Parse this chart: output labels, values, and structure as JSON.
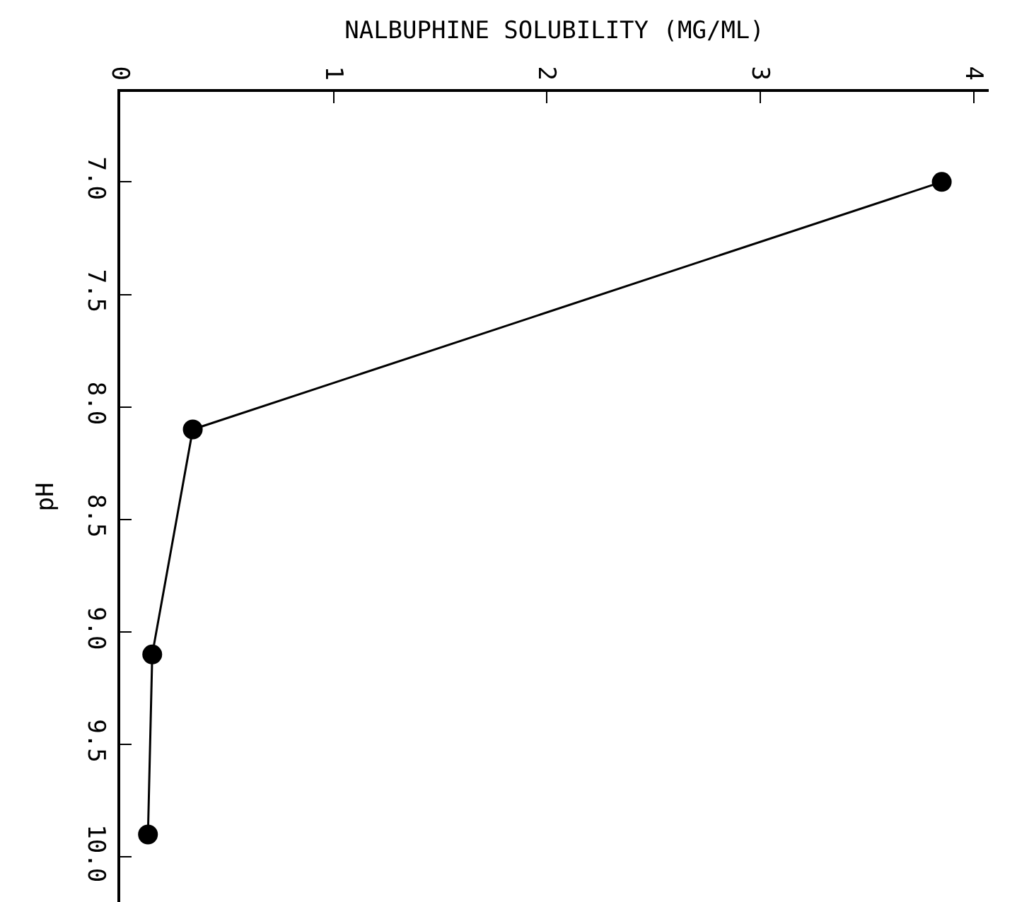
{
  "chart_data": {
    "type": "line",
    "xlabel": "NALBUPHINE SOLUBILITY (MG/ML)",
    "ylabel": "pH",
    "x": [
      3.85,
      0.34,
      0.15,
      0.13
    ],
    "series": [
      {
        "color": "#000000",
        "values": [
          7.0,
          8.1,
          9.1,
          9.9
        ]
      }
    ],
    "xlim": [
      0,
      4.07
    ],
    "xticks": [
      0,
      1,
      2,
      3,
      4
    ],
    "ylim": [
      10.2,
      6.6
    ],
    "yticks": [
      {
        "value": 7,
        "label": "7.0"
      },
      {
        "value": 7.5,
        "label": "7.5"
      },
      {
        "value": 8,
        "label": "8.0"
      },
      {
        "value": 8.5,
        "label": "8.5"
      },
      {
        "value": 9,
        "label": "9.0"
      },
      {
        "value": 9.5,
        "label": "9.5"
      },
      {
        "value": 10,
        "label": "10.0"
      }
    ],
    "marker": "circle",
    "line_style": "solid"
  }
}
